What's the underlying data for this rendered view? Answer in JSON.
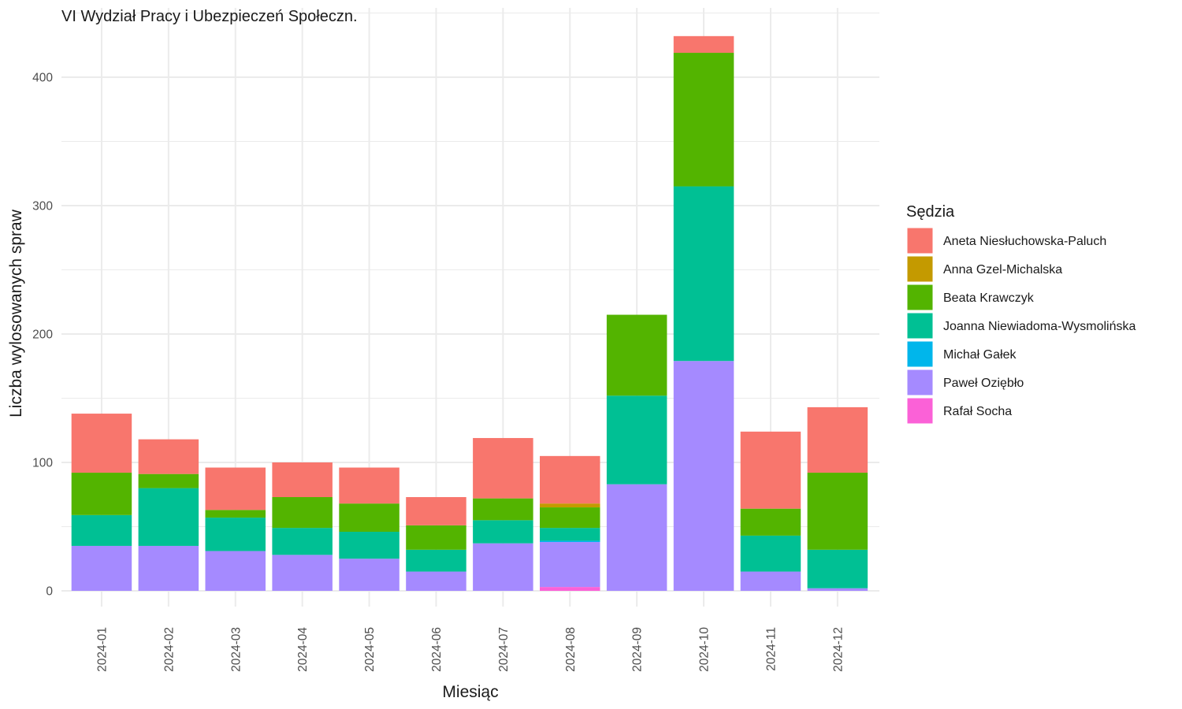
{
  "chart_data": {
    "type": "bar",
    "stacked": true,
    "title": "VI Wydział Pracy i Ubezpieczeń Społeczn.",
    "xlabel": "Miesiąc",
    "ylabel": "Liczba wylosowanych spraw",
    "ylim": [
      0,
      440
    ],
    "yticks": [
      0,
      100,
      200,
      300,
      400
    ],
    "grid": true,
    "legend_title": "Sędzia",
    "legend_position": "right",
    "categories": [
      "2024-01",
      "2024-02",
      "2024-03",
      "2024-04",
      "2024-05",
      "2024-06",
      "2024-07",
      "2024-08",
      "2024-09",
      "2024-10",
      "2024-11",
      "2024-12"
    ],
    "series": [
      {
        "name": "Aneta Niesłuchowska-Paluch",
        "color": "#F8766D",
        "values": [
          46,
          27,
          33,
          27,
          28,
          22,
          47,
          37,
          0,
          13,
          60,
          51
        ]
      },
      {
        "name": "Anna Gzel-Michalska",
        "color": "#C49A00",
        "values": [
          0,
          0,
          0,
          0,
          0,
          0,
          0,
          3,
          0,
          0,
          0,
          0
        ]
      },
      {
        "name": "Beata Krawczyk",
        "color": "#53B400",
        "values": [
          33,
          11,
          6,
          24,
          22,
          19,
          17,
          16,
          63,
          104,
          21,
          60
        ]
      },
      {
        "name": "Joanna Niewiadoma-Wysmolińska",
        "color": "#00C094",
        "values": [
          24,
          45,
          26,
          21,
          21,
          17,
          18,
          10,
          69,
          136,
          28,
          30
        ]
      },
      {
        "name": "Michał Gałek",
        "color": "#00B6EB",
        "values": [
          0,
          0,
          0,
          0,
          0,
          0,
          0,
          1,
          0,
          0,
          0,
          0
        ]
      },
      {
        "name": "Paweł Oziębło",
        "color": "#A58AFF",
        "values": [
          35,
          35,
          31,
          28,
          25,
          15,
          37,
          35,
          83,
          179,
          15,
          2
        ]
      },
      {
        "name": "Rafał Socha",
        "color": "#FB61D7",
        "values": [
          0,
          0,
          0,
          0,
          0,
          0,
          0,
          3,
          0,
          0,
          0,
          0
        ]
      }
    ]
  }
}
